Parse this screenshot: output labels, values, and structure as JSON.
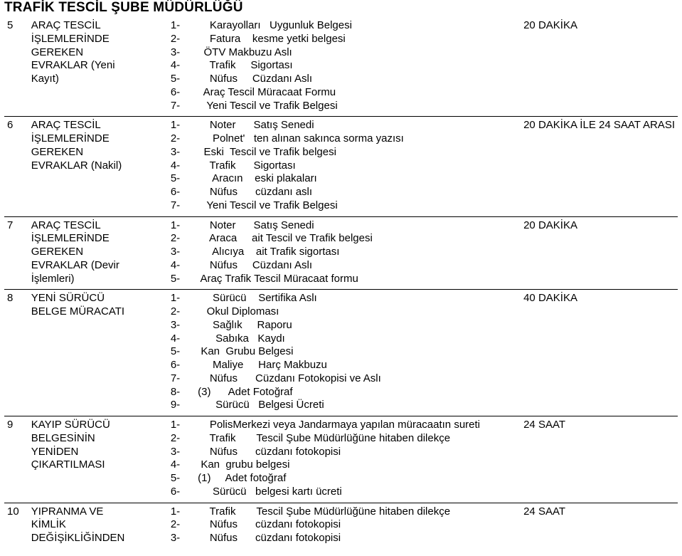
{
  "title": "TRAFİK TESCİL ŞUBE MÜDÜRLÜĞÜ",
  "colors": {
    "text": "#000000",
    "background": "#ffffff",
    "border": "#000000"
  },
  "rows": [
    {
      "num": "5",
      "label_lines": [
        "ARAÇ TESCİL",
        "İŞLEMLERİNDE",
        "GEREKEN",
        "EVRAKLAR (Yeni",
        "Kayıt)"
      ],
      "items": [
        "1-          Karayolları   Uygunluk Belgesi",
        "2-          Fatura    kesme yetki belgesi",
        "3-        ÖTV Makbuzu Aslı",
        "4-          Trafik     Sigortası",
        "5-          Nüfus     Cüzdanı Aslı",
        "6-        Araç Tescil Müracaat Formu",
        "7-         Yeni Tescil ve Trafik Belgesi"
      ],
      "duration": "20 DAKİKA"
    },
    {
      "num": "6",
      "label_lines": [
        "ARAÇ TESCİL",
        "İŞLEMLERİNDE",
        "GEREKEN",
        "EVRAKLAR (Nakil)"
      ],
      "items": [
        "1-          Noter      Satış Senedi",
        "2-           Polnet'   ten alınan sakınca sorma yazısı",
        "3-        Eski  Tescil ve Trafik belgesi",
        "4-          Trafik      Sigortası",
        "5-           Aracın    eski plakaları",
        "6-          Nüfus      cüzdanı aslı",
        "7-         Yeni Tescil ve Trafik Belgesi"
      ],
      "duration": "20 DAKİKA İLE 24 SAAT ARASI"
    },
    {
      "num": "7",
      "label_lines": [
        "ARAÇ TESCİL",
        "İŞLEMLERİNDE",
        "GEREKEN",
        "EVRAKLAR (Devir",
        "İşlemleri)"
      ],
      "items": [
        "1-          Noter      Satış Senedi",
        "2-          Araca     ait Tescil ve Trafik belgesi",
        "3-           Alıcıya    ait Trafik sigortası",
        "4-          Nüfus     Cüzdanı Aslı",
        "5-       Araç Trafik Tescil Müracaat formu"
      ],
      "duration": "20 DAKİKA"
    },
    {
      "num": "8",
      "label_lines": [
        "YENİ SÜRÜCÜ",
        "BELGE MÜRACATI"
      ],
      "items": [
        "1-           Sürücü    Sertifika Aslı",
        "2-         Okul Diploması",
        "3-           Sağlık     Raporu",
        "4-            Sabıka   Kaydı",
        "5-       Kan  Grubu Belgesi",
        "6-           Maliye     Harç Makbuzu",
        "7-          Nüfus      Cüzdanı Fotokopisi ve Aslı",
        "8-      (3)      Adet Fotoğraf",
        "9-            Sürücü   Belgesi Ücreti"
      ],
      "duration": "40 DAKİKA"
    },
    {
      "num": "9",
      "label_lines": [
        "KAYIP SÜRÜCÜ",
        "BELGESİNİN",
        "YENİDEN",
        "ÇIKARTILMASI"
      ],
      "items": [
        "1-          PolisMerkezi veya Jandarmaya yapılan müracaatın sureti",
        "2-          Trafik       Tescil Şube Müdürlüğüne hitaben dilekçe",
        "3-          Nüfus      cüzdanı fotokopisi",
        "4-       Kan  grubu belgesi",
        "5-      (1)     Adet fotoğraf",
        "6-           Sürücü   belgesi kartı ücreti"
      ],
      "duration": "24 SAAT"
    },
    {
      "num": "10",
      "label_lines": [
        "YIPRANMA VE",
        "KİMLİK",
        "DEĞİŞİKLİĞİNDEN"
      ],
      "items": [
        "1-          Trafik       Tescil Şube Müdürlüğüne hitaben dilekçe",
        "2-          Nüfus      cüzdanı fotokopisi",
        "3-          Nüfus      cüzdanı fotokopisi"
      ],
      "duration": "24 SAAT"
    }
  ]
}
